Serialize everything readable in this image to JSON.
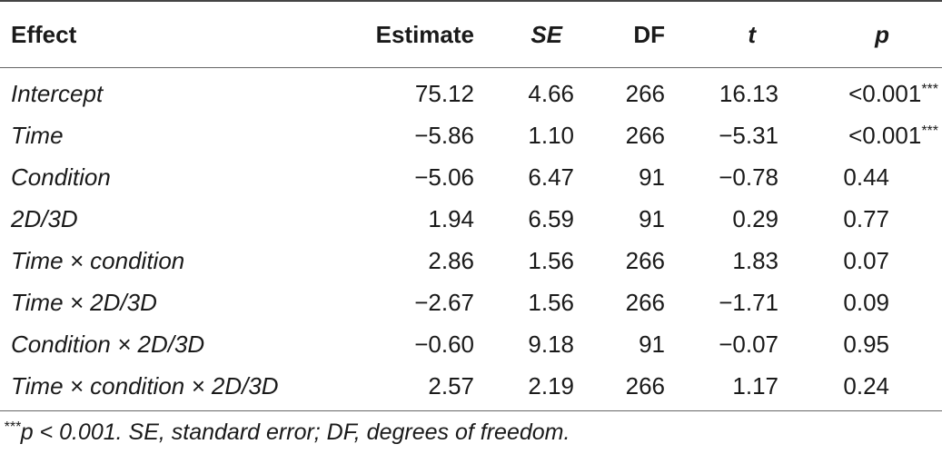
{
  "table": {
    "headers": {
      "effect": "Effect",
      "estimate": "Estimate",
      "se": "SE",
      "df": "DF",
      "t": "t",
      "p": "p"
    },
    "rows": [
      {
        "effect": "Intercept",
        "estimate": "75.12",
        "se": "4.66",
        "df": "266",
        "t": "16.13",
        "p": "<0.001",
        "stars": "***"
      },
      {
        "effect": "Time",
        "estimate": "−5.86",
        "se": "1.10",
        "df": "266",
        "t": "−5.31",
        "p": "<0.001",
        "stars": "***"
      },
      {
        "effect": "Condition",
        "estimate": "−5.06",
        "se": "6.47",
        "df": "91",
        "t": "−0.78",
        "p": "0.44",
        "stars": ""
      },
      {
        "effect": "2D/3D",
        "estimate": "1.94",
        "se": "6.59",
        "df": "91",
        "t": "0.29",
        "p": "0.77",
        "stars": ""
      },
      {
        "effect": "Time × condition",
        "estimate": "2.86",
        "se": "1.56",
        "df": "266",
        "t": "1.83",
        "p": "0.07",
        "stars": ""
      },
      {
        "effect": "Time × 2D/3D",
        "estimate": "−2.67",
        "se": "1.56",
        "df": "266",
        "t": "−1.71",
        "p": "0.09",
        "stars": ""
      },
      {
        "effect": "Condition × 2D/3D",
        "estimate": "−0.60",
        "se": "9.18",
        "df": "91",
        "t": "−0.07",
        "p": "0.95",
        "stars": ""
      },
      {
        "effect": "Time × condition × 2D/3D",
        "estimate": "2.57",
        "se": "2.19",
        "df": "266",
        "t": "1.17",
        "p": "0.24",
        "stars": ""
      }
    ]
  },
  "footnote": {
    "stars": "***",
    "text": "p < 0.001. SE, standard error; DF, degrees of freedom."
  }
}
